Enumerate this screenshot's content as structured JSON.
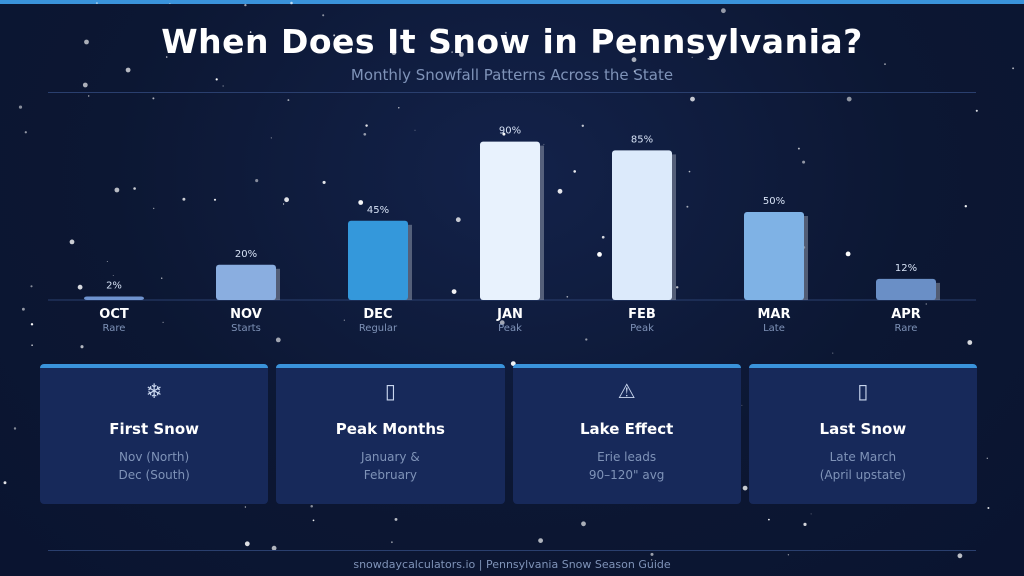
{
  "header": {
    "title": "When Does It Snow in Pennsylvania?",
    "subtitle": "Monthly Snowfall Patterns Across the State"
  },
  "colors": {
    "accent": "#3a93db",
    "background": "#0c1733",
    "card": "#17295a"
  },
  "chart_data": {
    "type": "bar",
    "categories": [
      "OCT",
      "NOV",
      "DEC",
      "JAN",
      "FEB",
      "MAR",
      "APR"
    ],
    "sublabels": [
      "Rare",
      "Starts",
      "Regular",
      "Peak",
      "Peak",
      "Late",
      "Rare"
    ],
    "values": [
      2,
      20,
      45,
      90,
      85,
      50,
      12
    ],
    "value_labels": [
      "2%",
      "20%",
      "45%",
      "90%",
      "85%",
      "50%",
      "12%"
    ],
    "bar_colors": [
      "#6f93cf",
      "#8aaee0",
      "#3498db",
      "#e8f2fd",
      "#dceafb",
      "#7fb2e5",
      "#6a8fc6"
    ],
    "ylim": [
      0,
      100
    ],
    "grid": false,
    "legend": "none"
  },
  "cards": [
    {
      "icon": "snowflake-icon",
      "glyph": "❄",
      "title": "First Snow",
      "lines": [
        "Nov (North)",
        "Dec (South)"
      ]
    },
    {
      "icon": "missing-glyph-icon",
      "glyph": "▯",
      "title": "Peak Months",
      "lines": [
        "January &",
        "February"
      ]
    },
    {
      "icon": "warning-icon",
      "glyph": "⚠",
      "title": "Lake Effect",
      "lines": [
        "Erie leads",
        "90–120\" avg"
      ]
    },
    {
      "icon": "missing-glyph-icon",
      "glyph": "▯",
      "title": "Last Snow",
      "lines": [
        "Late March",
        "(April upstate)"
      ]
    }
  ],
  "footer": {
    "text": "snowdaycalculators.io  |  Pennsylvania Snow Season Guide"
  }
}
